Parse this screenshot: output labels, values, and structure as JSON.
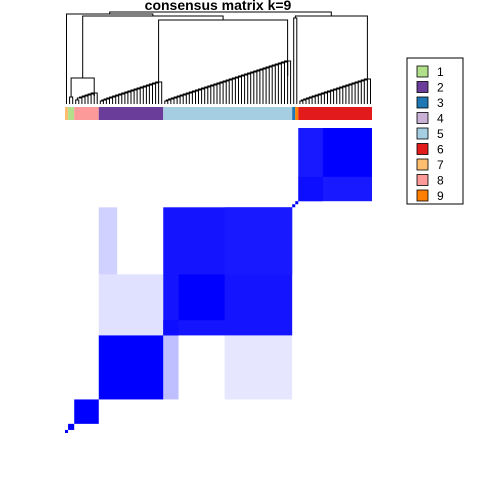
{
  "chart_data": {
    "type": "heatmap",
    "title": "consensus matrix k=9",
    "legend": {
      "position": "top-right",
      "entries": [
        {
          "label": "1",
          "color": "#B2DF8A"
        },
        {
          "label": "2",
          "color": "#6A3D9A"
        },
        {
          "label": "3",
          "color": "#1F78B4"
        },
        {
          "label": "4",
          "color": "#CAB2D6"
        },
        {
          "label": "5",
          "color": "#A6CEE3"
        },
        {
          "label": "6",
          "color": "#E31A1C"
        },
        {
          "label": "7",
          "color": "#FDBF6F"
        },
        {
          "label": "8",
          "color": "#FB9A99"
        },
        {
          "label": "9",
          "color": "#FF7F00"
        }
      ]
    },
    "color_scale": {
      "low": "#FFFFFF",
      "high": "#0000FF",
      "range": [
        0,
        1
      ]
    },
    "n_samples": 100,
    "class_order": [
      "7",
      "1",
      "8",
      "2",
      "5",
      "3",
      "9",
      "6"
    ],
    "class_sizes": [
      1,
      2,
      8,
      21,
      42,
      1,
      1,
      24
    ],
    "blocks": [
      {
        "class": "7",
        "start": 0,
        "size": 1,
        "value": 1.0
      },
      {
        "class": "1",
        "start": 1,
        "size": 2,
        "value": 1.0
      },
      {
        "class": "8",
        "start": 3,
        "size": 8,
        "value": 1.0
      },
      {
        "class": "2",
        "start": 11,
        "size": 21,
        "value": 1.0
      },
      {
        "class": "5",
        "start": 32,
        "size": 42,
        "value": 0.92
      },
      {
        "class": "3",
        "start": 74,
        "size": 1,
        "value": 1.0
      },
      {
        "class": "9",
        "start": 75,
        "size": 1,
        "value": 1.0
      },
      {
        "class": "6",
        "start": 76,
        "size": 24,
        "value": 0.9
      }
    ],
    "sub_blocks": [
      {
        "start": 32,
        "size": 5,
        "value": 0.95
      },
      {
        "start": 37,
        "size": 15,
        "value": 1.0
      },
      {
        "start": 52,
        "size": 22,
        "value": 0.9
      },
      {
        "start": 76,
        "size": 8,
        "value": 0.95
      },
      {
        "start": 84,
        "size": 16,
        "value": 1.0
      }
    ],
    "off_diagonal": [
      {
        "rows": [
          11,
          32
        ],
        "cols": [
          32,
          37
        ],
        "value": 0.25
      },
      {
        "rows": [
          11,
          32
        ],
        "cols": [
          52,
          74
        ],
        "value": 0.1
      },
      {
        "rows": [
          32,
          52
        ],
        "cols": [
          11,
          32
        ],
        "value": 0.12
      },
      {
        "rows": [
          52,
          74
        ],
        "cols": [
          11,
          17
        ],
        "value": 0.18
      },
      {
        "rows": [
          84,
          100
        ],
        "cols": [
          76,
          84
        ],
        "value": 0.6
      }
    ],
    "dendrogram": true
  }
}
